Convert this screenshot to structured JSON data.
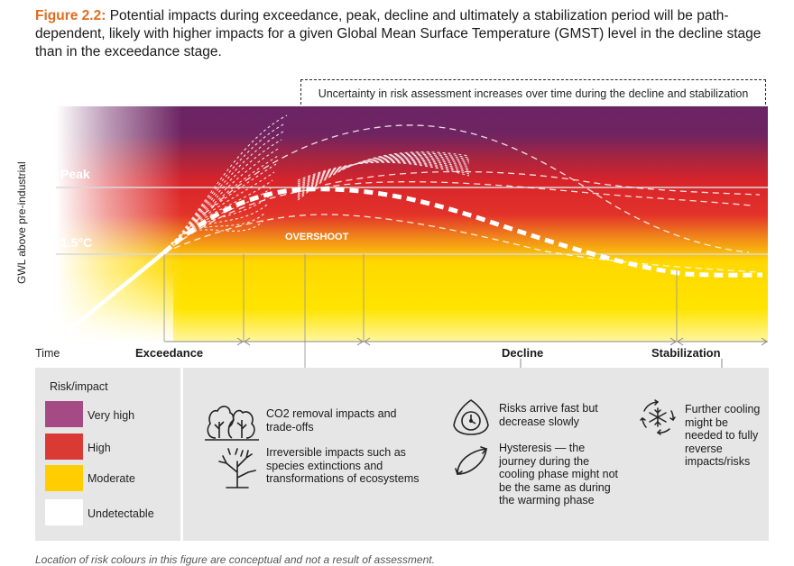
{
  "caption": {
    "figure_label": "Figure 2.2:",
    "text": " Potential impacts during exceedance, peak, decline and ultimately a stabilization period will be path-dependent, likely with higher impacts for a given Global Mean Surface Temperature (GMST) level in the decline stage than in the exceedance stage."
  },
  "uncertainty_label": "Uncertainty in risk assessment increases over time during the decline and stabilization period",
  "chart": {
    "y_axis_label": "GWL above pre-industrial",
    "x_axis_label": "Time",
    "peak_label": "Peak",
    "threshold_label": "1.5°C",
    "overshoot_label": "OVERSHOOT",
    "phases": [
      "Exceedance",
      "Decline",
      "Stabilization"
    ],
    "colors": {
      "very_high": "#6a2464",
      "high": "#d8242a",
      "moderate": "#ffd800",
      "undetectable": "#ffffff"
    }
  },
  "legend": {
    "title": "Risk/impact",
    "items": [
      {
        "label": "Very high",
        "color": "#a64a86"
      },
      {
        "label": "High",
        "color": "#d93a34"
      },
      {
        "label": "Moderate",
        "color": "#ffcd00"
      },
      {
        "label": "Undetectable",
        "color": "#ffffff"
      }
    ]
  },
  "impacts": {
    "co2_removal": "CO2 removal impacts and trade-offs",
    "irreversible": "Irreversible impacts such as species extinctions and transformations of ecosystems",
    "risks_fast": "Risks arrive fast but decrease slowly",
    "hysteresis": "Hysteresis — the journey during the cooling phase might not be the same as during the warming phase",
    "further_cooling": "Further cooling might be needed to fully reverse impacts/risks"
  },
  "icons": [
    "trees-icon",
    "dead-tree-icon",
    "clock-icon",
    "hysteresis-loop-icon",
    "snowflake-cycle-icon"
  ],
  "footnote": "Location of risk colours in this figure are conceptual and not a result of assessment."
}
